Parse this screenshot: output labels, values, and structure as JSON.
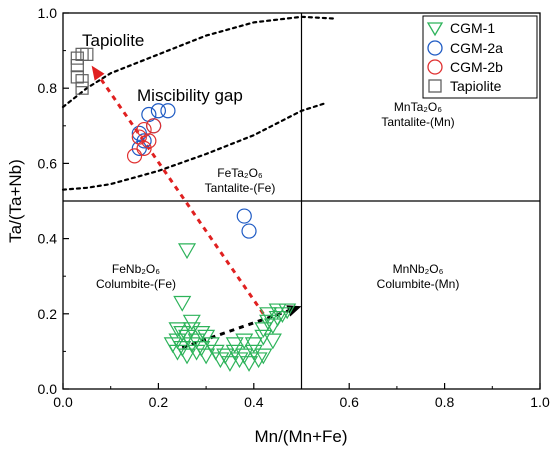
{
  "chart_data": {
    "type": "scatter",
    "xlabel": "Mn/(Mn+Fe)",
    "ylabel": "Ta/(Ta+Nb)",
    "xlim": [
      0,
      1
    ],
    "ylim": [
      0,
      1
    ],
    "xticks": [
      "0.0",
      "0.2",
      "0.4",
      "0.6",
      "0.8",
      "1.0"
    ],
    "yticks": [
      "0.0",
      "0.2",
      "0.4",
      "0.6",
      "0.8",
      "1.0"
    ],
    "grid": false,
    "legend_position": "top-right",
    "series": [
      {
        "name": "CGM-1",
        "marker": "triangle-down",
        "color": "#2db35a",
        "points": [
          [
            0.26,
            0.37
          ],
          [
            0.25,
            0.23
          ],
          [
            0.27,
            0.18
          ],
          [
            0.24,
            0.16
          ],
          [
            0.25,
            0.15
          ],
          [
            0.27,
            0.16
          ],
          [
            0.29,
            0.15
          ],
          [
            0.24,
            0.13
          ],
          [
            0.26,
            0.14
          ],
          [
            0.28,
            0.13
          ],
          [
            0.3,
            0.14
          ],
          [
            0.23,
            0.12
          ],
          [
            0.25,
            0.11
          ],
          [
            0.27,
            0.12
          ],
          [
            0.29,
            0.11
          ],
          [
            0.31,
            0.12
          ],
          [
            0.24,
            0.1
          ],
          [
            0.26,
            0.09
          ],
          [
            0.28,
            0.1
          ],
          [
            0.3,
            0.09
          ],
          [
            0.32,
            0.1
          ],
          [
            0.34,
            0.09
          ],
          [
            0.36,
            0.1
          ],
          [
            0.38,
            0.09
          ],
          [
            0.4,
            0.1
          ],
          [
            0.42,
            0.09
          ],
          [
            0.37,
            0.08
          ],
          [
            0.39,
            0.07
          ],
          [
            0.41,
            0.08
          ],
          [
            0.35,
            0.07
          ],
          [
            0.33,
            0.08
          ],
          [
            0.36,
            0.12
          ],
          [
            0.38,
            0.13
          ],
          [
            0.4,
            0.12
          ],
          [
            0.42,
            0.14
          ],
          [
            0.44,
            0.13
          ],
          [
            0.42,
            0.16
          ],
          [
            0.43,
            0.18
          ],
          [
            0.44,
            0.17
          ],
          [
            0.45,
            0.19
          ],
          [
            0.46,
            0.2
          ],
          [
            0.47,
            0.21
          ],
          [
            0.45,
            0.21
          ],
          [
            0.43,
            0.2
          ]
        ]
      },
      {
        "name": "CGM-2a",
        "marker": "circle",
        "color": "#1f5bc4",
        "points": [
          [
            0.16,
            0.68
          ],
          [
            0.18,
            0.73
          ],
          [
            0.2,
            0.74
          ],
          [
            0.22,
            0.74
          ],
          [
            0.17,
            0.66
          ],
          [
            0.16,
            0.64
          ],
          [
            0.19,
            0.7
          ],
          [
            0.38,
            0.46
          ],
          [
            0.39,
            0.42
          ]
        ]
      },
      {
        "name": "CGM-2b",
        "marker": "circle",
        "color": "#e03030",
        "points": [
          [
            0.15,
            0.62
          ],
          [
            0.17,
            0.64
          ],
          [
            0.18,
            0.66
          ],
          [
            0.19,
            0.7
          ],
          [
            0.17,
            0.69
          ],
          [
            0.16,
            0.67
          ]
        ]
      },
      {
        "name": "Tapiolite",
        "marker": "square",
        "color": "#606060",
        "points": [
          [
            0.03,
            0.88
          ],
          [
            0.04,
            0.89
          ],
          [
            0.05,
            0.89
          ],
          [
            0.03,
            0.86
          ],
          [
            0.03,
            0.83
          ],
          [
            0.04,
            0.82
          ],
          [
            0.04,
            0.8
          ]
        ]
      }
    ],
    "divider_lines": [
      {
        "from": [
          0.5,
          0
        ],
        "to": [
          0.5,
          1
        ]
      },
      {
        "from": [
          0,
          0.5
        ],
        "to": [
          1,
          0.5
        ]
      }
    ],
    "miscibility_gap_curves": [
      {
        "points": [
          [
            0,
            0.75
          ],
          [
            0.05,
            0.8
          ],
          [
            0.1,
            0.84
          ],
          [
            0.2,
            0.89
          ],
          [
            0.3,
            0.94
          ],
          [
            0.4,
            0.975
          ],
          [
            0.5,
            0.99
          ],
          [
            0.57,
            0.985
          ]
        ]
      },
      {
        "points": [
          [
            0,
            0.53
          ],
          [
            0.05,
            0.535
          ],
          [
            0.1,
            0.545
          ],
          [
            0.2,
            0.58
          ],
          [
            0.3,
            0.625
          ],
          [
            0.4,
            0.675
          ],
          [
            0.5,
            0.74
          ],
          [
            0.55,
            0.76
          ]
        ]
      }
    ],
    "trend_arrows": [
      {
        "color": "#e02020",
        "from": [
          0.42,
          0.2
        ],
        "to": [
          0.06,
          0.86
        ]
      },
      {
        "color": "#000000",
        "from": [
          0.25,
          0.11
        ],
        "to": [
          0.5,
          0.22
        ]
      }
    ],
    "annotations": {
      "tapiolite": "Tapiolite",
      "miscibility_gap": "Miscibility gap",
      "mn_ta_formula": "MnTa₂O₆",
      "mn_ta_name": "Tantalite-(Mn)",
      "fe_ta_formula": "FeTa₂O₆",
      "fe_ta_name": "Tantalite-(Fe)",
      "fe_nb_formula": "FeNb₂O₆",
      "fe_nb_name": "Columbite-(Fe)",
      "mn_nb_formula": "MnNb₂O₆",
      "mn_nb_name": "Columbite-(Mn)"
    }
  }
}
